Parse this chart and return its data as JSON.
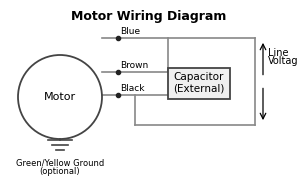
{
  "title": "Motor Wiring Diagram",
  "title_fontsize": 9,
  "title_fontweight": "bold",
  "bg_color": "#ffffff",
  "line_color": "#888888",
  "text_color": "#000000",
  "motor_label": "Motor",
  "motor_label_fontsize": 8,
  "wire_label_fontsize": 6.5,
  "cap_label_fontsize": 7.5,
  "lv_label_fontsize": 7,
  "ground_label_fontsize": 6,
  "capacitor_label_line1": "Capacitor",
  "capacitor_label_line2": "(External)",
  "line_voltage_label_line1": "Line",
  "line_voltage_label_line2": "Voltage",
  "ground_label_line1": "Green/Yellow Ground",
  "ground_label_line2": "(optional)"
}
